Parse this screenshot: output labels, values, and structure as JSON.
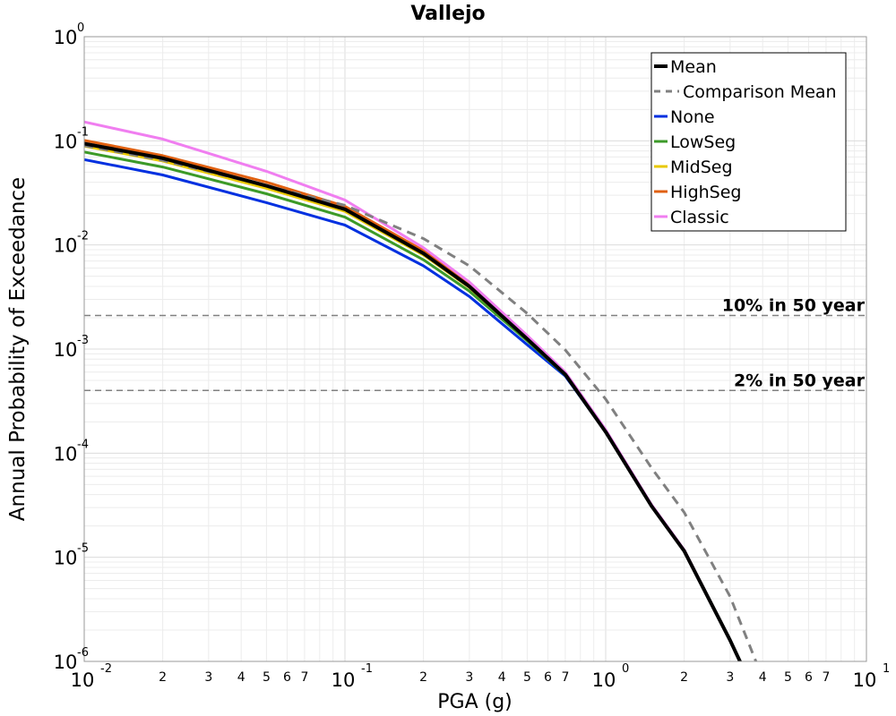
{
  "chart_data": {
    "type": "line",
    "title": "Vallejo",
    "xlabel": "PGA (g)",
    "ylabel": "Annual Probability of Exceedance",
    "x_scale": "log",
    "y_scale": "log",
    "xlim": [
      0.01,
      10
    ],
    "ylim": [
      1e-06,
      1
    ],
    "grid": true,
    "legend_position": "top-right",
    "x_major_ticks": [
      {
        "value": 0.01,
        "base": "10",
        "exp": "-2"
      },
      {
        "value": 0.1,
        "base": "10",
        "exp": "-1"
      },
      {
        "value": 1,
        "base": "10",
        "exp": "0"
      },
      {
        "value": 10,
        "base": "10",
        "exp": "1"
      }
    ],
    "x_minor_tick_labels": [
      "2",
      "3",
      "4",
      "5",
      "6",
      "7"
    ],
    "y_major_ticks": [
      {
        "value": 1,
        "base": "10",
        "exp": "0"
      },
      {
        "value": 0.1,
        "base": "10",
        "exp": "-1"
      },
      {
        "value": 0.01,
        "base": "10",
        "exp": "-2"
      },
      {
        "value": 0.001,
        "base": "10",
        "exp": "-3"
      },
      {
        "value": 0.0001,
        "base": "10",
        "exp": "-4"
      },
      {
        "value": 1e-05,
        "base": "10",
        "exp": "-5"
      },
      {
        "value": 1e-06,
        "base": "10",
        "exp": "-6"
      }
    ],
    "reference_lines": [
      {
        "label": "10% in 50 year",
        "y": 0.0021,
        "color": "#808080"
      },
      {
        "label": "2% in 50 year",
        "y": 0.0004,
        "color": "#808080"
      }
    ],
    "series": [
      {
        "name": "None",
        "color": "#0030e0",
        "width": 3,
        "dash": "",
        "x": [
          0.01,
          0.02,
          0.05,
          0.1,
          0.2,
          0.3,
          0.5,
          0.7,
          1.0,
          1.5,
          2.0,
          3.0,
          3.5
        ],
        "y": [
          0.066,
          0.047,
          0.0255,
          0.0155,
          0.0063,
          0.0032,
          0.0011,
          0.00055,
          0.00016,
          3.1e-05,
          1.15e-05,
          1.6e-06,
          7e-07
        ]
      },
      {
        "name": "LowSeg",
        "color": "#3c9a28",
        "width": 3,
        "dash": "",
        "x": [
          0.01,
          0.02,
          0.05,
          0.1,
          0.2,
          0.3,
          0.5,
          0.7,
          1.0,
          1.5,
          2.0,
          3.0,
          3.5
        ],
        "y": [
          0.078,
          0.056,
          0.031,
          0.0185,
          0.0072,
          0.0036,
          0.0012,
          0.00056,
          0.00016,
          3.1e-05,
          1.15e-05,
          1.6e-06,
          7e-07
        ]
      },
      {
        "name": "MidSeg",
        "color": "#e8c800",
        "width": 3,
        "dash": "",
        "x": [
          0.01,
          0.02,
          0.05,
          0.1,
          0.2,
          0.3,
          0.5,
          0.7,
          1.0,
          1.5,
          2.0,
          3.0,
          3.5
        ],
        "y": [
          0.089,
          0.064,
          0.035,
          0.021,
          0.008,
          0.0039,
          0.00125,
          0.00057,
          0.000162,
          3.1e-05,
          1.15e-05,
          1.6e-06,
          7e-07
        ]
      },
      {
        "name": "HighSeg",
        "color": "#e06010",
        "width": 3,
        "dash": "",
        "x": [
          0.01,
          0.02,
          0.05,
          0.1,
          0.2,
          0.3,
          0.5,
          0.7,
          1.0,
          1.5,
          2.0,
          3.0,
          3.5
        ],
        "y": [
          0.101,
          0.072,
          0.04,
          0.0235,
          0.0088,
          0.0042,
          0.0013,
          0.00059,
          0.000165,
          3.15e-05,
          1.17e-05,
          1.6e-06,
          7e-07
        ]
      },
      {
        "name": "Classic",
        "color": "#f07ef0",
        "width": 3,
        "dash": "",
        "x": [
          0.01,
          0.02,
          0.05,
          0.1,
          0.2,
          0.3,
          0.5,
          0.7,
          1.0,
          1.5,
          2.0,
          3.0,
          3.5
        ],
        "y": [
          0.152,
          0.104,
          0.051,
          0.027,
          0.0094,
          0.0044,
          0.00135,
          0.0006,
          0.000168,
          3.2e-05,
          1.18e-05,
          1.6e-06,
          7e-07
        ]
      },
      {
        "name": "Comparison Mean",
        "color": "#808080",
        "width": 3,
        "dash": "10,7",
        "x": [
          0.01,
          0.02,
          0.05,
          0.1,
          0.2,
          0.3,
          0.5,
          0.7,
          1.0,
          1.5,
          2.0,
          3.0,
          3.8
        ],
        "y": [
          0.09,
          0.065,
          0.037,
          0.024,
          0.0115,
          0.0063,
          0.0022,
          0.00098,
          0.00033,
          7.2e-05,
          2.7e-05,
          4.2e-06,
          9.5e-07
        ]
      },
      {
        "name": "Mean",
        "color": "#000000",
        "width": 4,
        "dash": "",
        "x": [
          0.01,
          0.02,
          0.05,
          0.1,
          0.2,
          0.3,
          0.5,
          0.7,
          1.0,
          1.5,
          2.0,
          3.0,
          3.5
        ],
        "y": [
          0.094,
          0.068,
          0.037,
          0.022,
          0.0083,
          0.004,
          0.00125,
          0.00057,
          0.00016,
          3.1e-05,
          1.15e-05,
          1.6e-06,
          7e-07
        ]
      }
    ],
    "legend_order": [
      "Mean",
      "Comparison Mean",
      "None",
      "LowSeg",
      "MidSeg",
      "HighSeg",
      "Classic"
    ]
  }
}
